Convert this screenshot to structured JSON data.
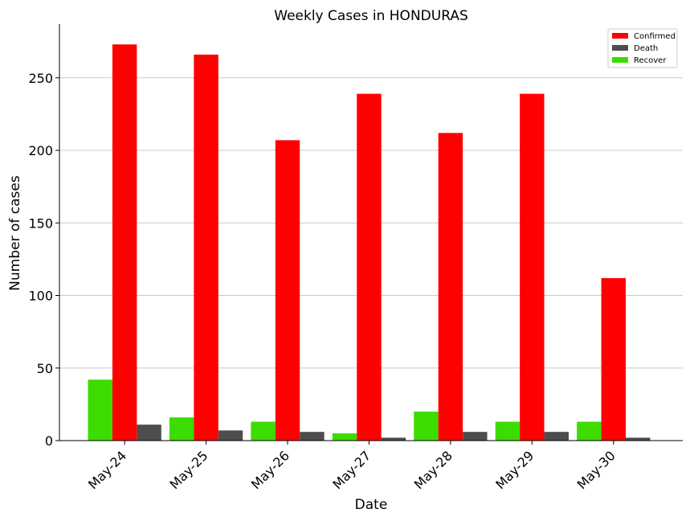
{
  "chart_data": {
    "type": "bar",
    "title": "Weekly Cases in HONDURAS",
    "xlabel": "Date",
    "ylabel": "Number of cases",
    "categories": [
      "May-24",
      "May-25",
      "May-26",
      "May-27",
      "May-28",
      "May-29",
      "May-30"
    ],
    "series": [
      {
        "name": "Confirmed",
        "color": "#ff0000",
        "values": [
          273,
          266,
          207,
          239,
          212,
          239,
          112
        ]
      },
      {
        "name": "Death",
        "color": "#4d4d4d",
        "values": [
          11,
          7,
          6,
          2,
          6,
          6,
          2
        ]
      },
      {
        "name": "Recover",
        "color": "#3ddc00",
        "values": [
          42,
          16,
          13,
          5,
          20,
          13,
          13
        ]
      }
    ],
    "bar_order": [
      "Recover",
      "Confirmed",
      "Death"
    ],
    "ylim": [
      0,
      287
    ],
    "yticks": [
      0,
      50,
      100,
      150,
      200,
      250
    ],
    "grid": "horizontal",
    "legend_position": "top-right"
  }
}
